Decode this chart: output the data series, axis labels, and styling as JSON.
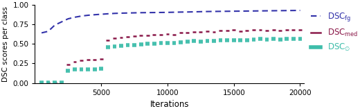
{
  "iterations": [
    500,
    1000,
    1500,
    2000,
    2500,
    3000,
    3500,
    4000,
    4500,
    5000,
    5500,
    6000,
    6500,
    7000,
    7500,
    8000,
    8500,
    9000,
    9500,
    10000,
    10500,
    11000,
    11500,
    12000,
    12500,
    13000,
    13500,
    14000,
    14500,
    15000,
    15500,
    16000,
    16500,
    17000,
    17500,
    18000,
    18500,
    19000,
    19500,
    20000
  ],
  "dsc_fg": [
    0.64,
    0.66,
    0.74,
    0.78,
    0.82,
    0.84,
    0.855,
    0.865,
    0.872,
    0.878,
    0.884,
    0.889,
    0.892,
    0.894,
    0.896,
    0.898,
    0.899,
    0.9,
    0.901,
    0.902,
    0.904,
    0.906,
    0.907,
    0.909,
    0.911,
    0.913,
    0.914,
    0.915,
    0.916,
    0.917,
    0.918,
    0.919,
    0.92,
    0.921,
    0.922,
    0.923,
    0.924,
    0.925,
    0.926,
    0.927
  ],
  "dsc_med": [
    0.005,
    0.008,
    0.01,
    0.01,
    0.24,
    0.27,
    0.285,
    0.295,
    0.295,
    0.305,
    0.55,
    0.575,
    0.585,
    0.59,
    0.6,
    0.61,
    0.605,
    0.615,
    0.62,
    0.625,
    0.62,
    0.64,
    0.645,
    0.655,
    0.65,
    0.66,
    0.655,
    0.67,
    0.67,
    0.675,
    0.665,
    0.67,
    0.675,
    0.68,
    0.67,
    0.68,
    0.67,
    0.675,
    0.68,
    0.68
  ],
  "dsc_mean": [
    0.003,
    0.005,
    0.008,
    0.01,
    0.16,
    0.17,
    0.175,
    0.175,
    0.178,
    0.18,
    0.455,
    0.47,
    0.475,
    0.48,
    0.488,
    0.492,
    0.498,
    0.502,
    0.508,
    0.51,
    0.51,
    0.52,
    0.525,
    0.535,
    0.53,
    0.54,
    0.535,
    0.545,
    0.545,
    0.55,
    0.545,
    0.55,
    0.555,
    0.56,
    0.555,
    0.56,
    0.555,
    0.56,
    0.565,
    0.565
  ],
  "violin_color": "#d3d3d3",
  "violin_edge_color": "#aaaaaa",
  "dsc_fg_color": "#3333aa",
  "dsc_med_color": "#8b1a4a",
  "dsc_mean_color": "#3dbdaa",
  "bg_color": "#ffffff",
  "xlabel": "Iterations",
  "ylabel": "DSC scores per class",
  "ylim": [
    0.0,
    1.0
  ],
  "yticks": [
    0.0,
    0.25,
    0.5,
    0.75,
    1.0
  ],
  "xticks": [
    5000,
    10000,
    15000,
    20000
  ],
  "legend_labels": [
    "DSC$_{\\rm fg}$",
    "DSC$_{\\rm med}$",
    "DSC$_{\\varnothing}$"
  ]
}
